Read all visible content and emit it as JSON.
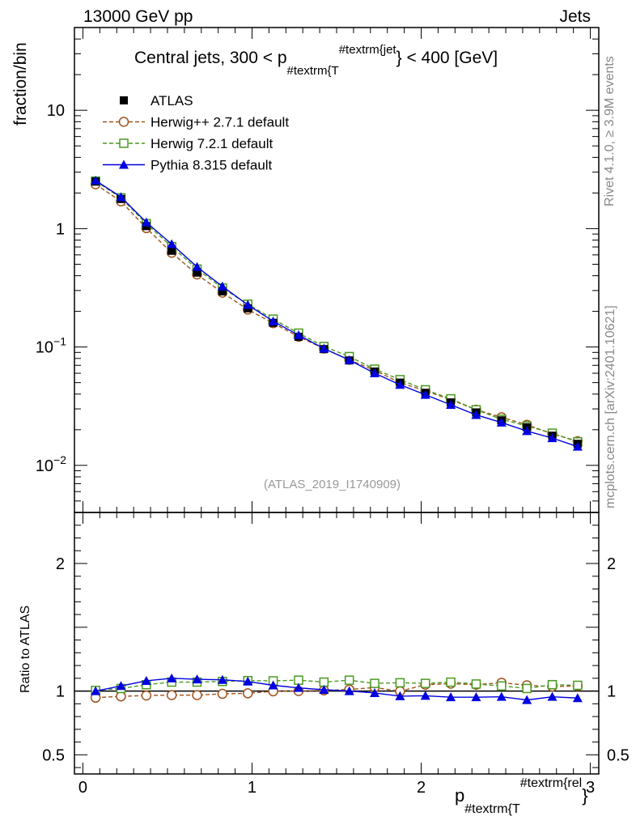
{
  "header": {
    "left": "13000 GeV pp",
    "right": "Jets"
  },
  "side": {
    "rivet": "Rivet 4.1.0, ≥ 3.9M events",
    "mcplots": "mcplots.cern.ch [arXiv:2401.10621]"
  },
  "chart_data": [
    {
      "type": "line",
      "panel": "main",
      "title": "Central jets, 300 < p",
      "title_sub": "#textrm{T",
      "title_sup": "#textrm{jet",
      "title_tail": "} < 400 [GeV]",
      "ylabel": "fraction/bin",
      "yscale": "log",
      "ylim": [
        0.004,
        50
      ],
      "xlim": [
        -0.05,
        3.05
      ],
      "y_ticks": [
        {
          "value": 10,
          "label": "10",
          "exp": ""
        },
        {
          "value": 1,
          "label": "1",
          "exp": ""
        },
        {
          "value": 0.1,
          "label": "10",
          "exp": "−1"
        },
        {
          "value": 0.01,
          "label": "10",
          "exp": "−2"
        }
      ],
      "watermark": "(ATLAS_2019_I1740909)",
      "x": [
        0.075,
        0.225,
        0.375,
        0.525,
        0.675,
        0.825,
        0.975,
        1.125,
        1.275,
        1.425,
        1.575,
        1.725,
        1.875,
        2.025,
        2.175,
        2.325,
        2.475,
        2.625,
        2.775,
        2.925
      ],
      "series": [
        {
          "name": "ATLAS",
          "key": "atlas",
          "color": "#000000",
          "marker": "square-filled",
          "line": "none",
          "values": [
            2.5,
            1.78,
            1.05,
            0.65,
            0.425,
            0.295,
            0.212,
            0.16,
            0.122,
            0.096,
            0.077,
            0.062,
            0.05,
            0.041,
            0.034,
            0.028,
            0.024,
            0.021,
            0.0178,
            0.0152
          ]
        },
        {
          "name": "Herwig++ 2.7.1 default",
          "key": "herwigpp",
          "color": "#a0521d",
          "marker": "circle-open",
          "line": "dashed",
          "values": [
            2.37,
            1.7,
            1.01,
            0.625,
            0.41,
            0.288,
            0.207,
            0.159,
            0.122,
            0.097,
            0.078,
            0.0635,
            0.05,
            0.0425,
            0.036,
            0.0295,
            0.0255,
            0.022,
            0.0185,
            0.016
          ]
        },
        {
          "name": "Herwig 7.2.1 default",
          "key": "herwig7",
          "color": "#4a9a20",
          "marker": "square-open",
          "line": "dashed",
          "values": [
            2.52,
            1.82,
            1.1,
            0.705,
            0.455,
            0.315,
            0.23,
            0.172,
            0.131,
            0.101,
            0.083,
            0.065,
            0.053,
            0.0435,
            0.0365,
            0.0295,
            0.0245,
            0.0215,
            0.0187,
            0.0158
          ]
        },
        {
          "name": "Pythia 8.315 default",
          "key": "pythia",
          "color": "#0000e0",
          "marker": "triangle-filled",
          "line": "solid",
          "values": [
            2.55,
            1.85,
            1.13,
            0.74,
            0.475,
            0.325,
            0.227,
            0.165,
            0.126,
            0.097,
            0.0775,
            0.06,
            0.048,
            0.0395,
            0.0325,
            0.0267,
            0.023,
            0.0195,
            0.017,
            0.0144
          ]
        }
      ]
    },
    {
      "type": "line",
      "panel": "ratio",
      "ylabel": "Ratio to ATLAS",
      "xlabel": "p",
      "xlabel_sub": "#textrm{T",
      "xlabel_sup": "#textrm{rel",
      "xlabel_tail": "}",
      "ylim": [
        0.35,
        2.4
      ],
      "xlim": [
        -0.05,
        3.05
      ],
      "y_ticks": [
        {
          "value": 2,
          "label": "2"
        },
        {
          "value": 1,
          "label": "1"
        },
        {
          "value": 0.5,
          "label": "0.5"
        }
      ],
      "x_ticks": [
        {
          "value": 0,
          "label": "0"
        },
        {
          "value": 1,
          "label": "1"
        },
        {
          "value": 2,
          "label": "2"
        },
        {
          "value": 3,
          "label": "3"
        }
      ],
      "reference": 1,
      "x": [
        0.075,
        0.225,
        0.375,
        0.525,
        0.675,
        0.825,
        0.975,
        1.125,
        1.275,
        1.425,
        1.575,
        1.725,
        1.875,
        2.025,
        2.175,
        2.325,
        2.475,
        2.625,
        2.775,
        2.925
      ],
      "series": [
        {
          "name": "Herwig++ 2.7.1 default",
          "key": "herwigpp",
          "color": "#a0521d",
          "marker": "circle-open",
          "line": "dashed",
          "values": [
            0.948,
            0.958,
            0.965,
            0.968,
            0.968,
            0.978,
            0.982,
            0.998,
            1.0,
            1.005,
            1.012,
            1.028,
            0.998,
            1.05,
            1.058,
            1.05,
            1.065,
            1.045,
            1.035,
            1.04
          ]
        },
        {
          "name": "Herwig 7.2.1 default",
          "key": "herwig7",
          "color": "#4a9a20",
          "marker": "square-open",
          "line": "dashed",
          "values": [
            1.005,
            1.02,
            1.05,
            1.07,
            1.07,
            1.075,
            1.082,
            1.08,
            1.085,
            1.07,
            1.085,
            1.06,
            1.065,
            1.06,
            1.07,
            1.055,
            1.04,
            1.02,
            1.05,
            1.045
          ]
        },
        {
          "name": "Pythia 8.315 default",
          "key": "pythia",
          "color": "#0000e0",
          "marker": "triangle-filled",
          "line": "solid",
          "values": [
            1.0,
            1.04,
            1.08,
            1.1,
            1.092,
            1.088,
            1.075,
            1.045,
            1.025,
            1.01,
            1.0,
            0.985,
            0.96,
            0.963,
            0.952,
            0.952,
            0.955,
            0.93,
            0.955,
            0.945
          ]
        }
      ]
    }
  ]
}
